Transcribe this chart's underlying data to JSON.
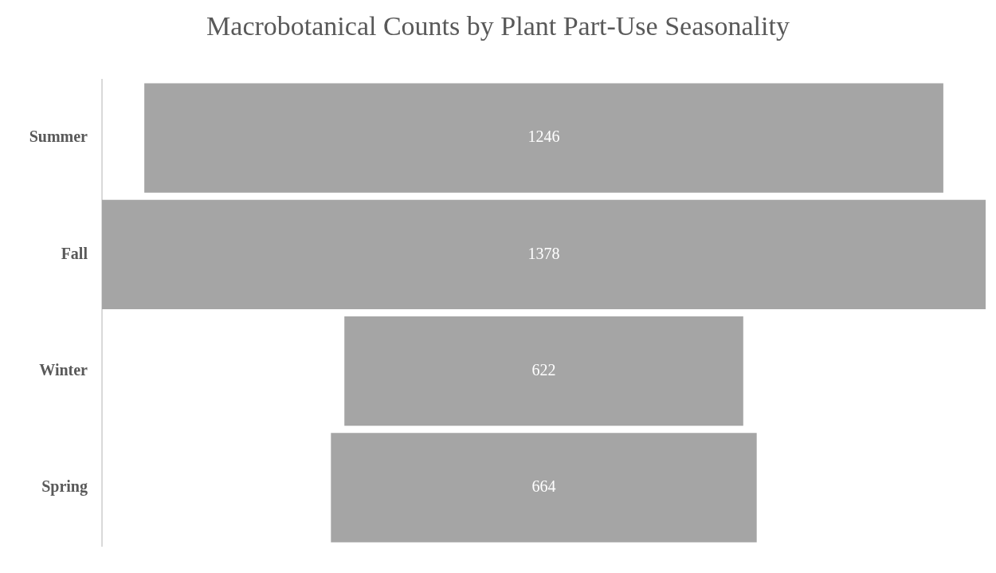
{
  "chart_data": {
    "type": "other",
    "title": "Macrobotanical Counts by Plant Part-Use Seasonality",
    "categories": [
      "Summer",
      "Fall",
      "Winter",
      "Spring"
    ],
    "values": [
      1246,
      1378,
      622,
      664
    ],
    "color": "#a5a5a5",
    "data_labels": true
  }
}
